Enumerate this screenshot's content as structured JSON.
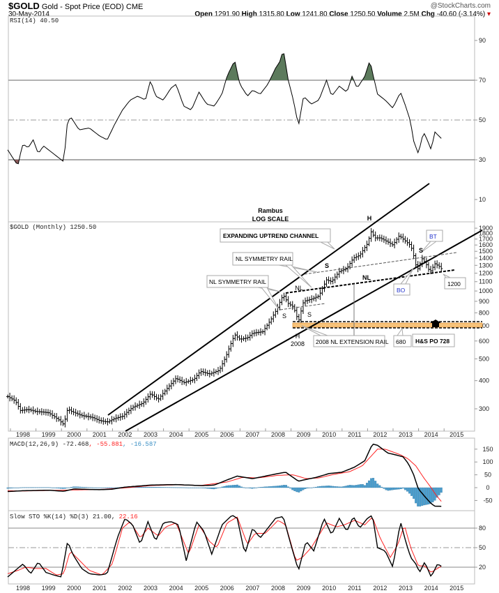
{
  "header": {
    "symbol": "$GOLD",
    "name": "Gold - Spot Price (EOD)",
    "exchange": "CME",
    "date": "30-May-2014",
    "watermark": "@StockCharts.com",
    "open_label": "Open",
    "open": "1291.90",
    "high_label": "High",
    "high": "1315.80",
    "low_label": "Low",
    "low": "1241.80",
    "close_label": "Close",
    "close": "1250.50",
    "volume_label": "Volume",
    "volume": "2.5M",
    "chg_label": "Chg",
    "chg": "-40.60 (-3.14%)",
    "down_color": "#cc0000"
  },
  "annotations": {
    "author": "Rambus",
    "scale": "LOG SCALE",
    "channel": "EXPANDING UPTREND CHANNEL",
    "nl_rail_upper": "NL SYMMETRY RAIL",
    "nl_rail_lower": "NL SYMMETRY RAIL",
    "extension_rail": "2008 NL EXTENSION RAIL",
    "level_680": "680",
    "hs_po": "H&S PO 728",
    "level_1200": "1200",
    "bo": "BO",
    "bt": "BT",
    "h_top": "H",
    "s_left_top": "S",
    "nl_top": "NL",
    "s_right_top": "S",
    "nl_2008": "NL",
    "s_left_2008": "S",
    "s_right_2008": "S",
    "h_2008": "H",
    "year_2008": "2008"
  },
  "chart_data": [
    {
      "type": "line",
      "title": "RSI(14) 40.50",
      "yticks": [
        10,
        30,
        50,
        70,
        90
      ],
      "ylim": [
        0,
        100
      ],
      "overbought": 70,
      "oversold": 30,
      "mid": 50,
      "fill_colors": {
        "overbought": "#5c7a5c",
        "oversold": "#8a5a5a"
      },
      "points": [
        [
          1997.4,
          35
        ],
        [
          1997.6,
          31
        ],
        [
          1997.8,
          27
        ],
        [
          1997.9,
          33
        ],
        [
          1998.0,
          38
        ],
        [
          1998.2,
          36
        ],
        [
          1998.4,
          40
        ],
        [
          1998.6,
          33
        ],
        [
          1998.8,
          37
        ],
        [
          1999.0,
          35
        ],
        [
          1999.3,
          32
        ],
        [
          1999.6,
          29
        ],
        [
          1999.75,
          50
        ],
        [
          1999.9,
          51
        ],
        [
          2000.2,
          45
        ],
        [
          2000.6,
          46
        ],
        [
          2001.0,
          42
        ],
        [
          2001.3,
          40
        ],
        [
          2001.6,
          48
        ],
        [
          2001.9,
          55
        ],
        [
          2002.2,
          60
        ],
        [
          2002.5,
          62
        ],
        [
          2002.8,
          60
        ],
        [
          2003.0,
          70
        ],
        [
          2003.2,
          62
        ],
        [
          2003.5,
          60
        ],
        [
          2003.8,
          66
        ],
        [
          2004.0,
          68
        ],
        [
          2004.3,
          57
        ],
        [
          2004.6,
          55
        ],
        [
          2004.9,
          64
        ],
        [
          2005.2,
          58
        ],
        [
          2005.5,
          57
        ],
        [
          2005.8,
          63
        ],
        [
          2006.0,
          72
        ],
        [
          2006.3,
          80
        ],
        [
          2006.5,
          68
        ],
        [
          2006.8,
          62
        ],
        [
          2007.0,
          65
        ],
        [
          2007.3,
          63
        ],
        [
          2007.6,
          68
        ],
        [
          2007.9,
          76
        ],
        [
          2008.1,
          80
        ],
        [
          2008.2,
          86
        ],
        [
          2008.4,
          70
        ],
        [
          2008.6,
          60
        ],
        [
          2008.8,
          47
        ],
        [
          2009.0,
          62
        ],
        [
          2009.3,
          58
        ],
        [
          2009.6,
          60
        ],
        [
          2009.9,
          70
        ],
        [
          2010.1,
          62
        ],
        [
          2010.4,
          67
        ],
        [
          2010.7,
          64
        ],
        [
          2010.9,
          72
        ],
        [
          2011.1,
          66
        ],
        [
          2011.4,
          72
        ],
        [
          2011.6,
          80
        ],
        [
          2011.7,
          74
        ],
        [
          2011.9,
          63
        ],
        [
          2012.2,
          60
        ],
        [
          2012.5,
          56
        ],
        [
          2012.8,
          64
        ],
        [
          2013.0,
          57
        ],
        [
          2013.2,
          49
        ],
        [
          2013.3,
          40
        ],
        [
          2013.5,
          33
        ],
        [
          2013.7,
          44
        ],
        [
          2013.85,
          40
        ],
        [
          2014.0,
          35
        ],
        [
          2014.15,
          44
        ],
        [
          2014.3,
          42
        ],
        [
          2014.42,
          40.5
        ]
      ]
    },
    {
      "type": "ohlc",
      "title": "$GOLD (Monthly) 1250.50",
      "scale": "log",
      "yticks": [
        300,
        400,
        500,
        600,
        700,
        800,
        900,
        1000,
        1100,
        1200,
        1300,
        1400,
        1500,
        1600,
        1700,
        1800,
        1900
      ],
      "xticks": [
        "1998",
        "1999",
        "2000",
        "2001",
        "2002",
        "2003",
        "2004",
        "2005",
        "2006",
        "2007",
        "2008",
        "2009",
        "2010",
        "2011",
        "2012",
        "2013",
        "2014",
        "2015"
      ],
      "points": [
        [
          1997.4,
          340
        ],
        [
          1997.7,
          325
        ],
        [
          1997.9,
          295
        ],
        [
          1998.2,
          298
        ],
        [
          1998.5,
          292
        ],
        [
          1998.8,
          290
        ],
        [
          1999.0,
          288
        ],
        [
          1999.4,
          268
        ],
        [
          1999.6,
          255
        ],
        [
          1999.75,
          300
        ],
        [
          1999.9,
          292
        ],
        [
          2000.3,
          280
        ],
        [
          2000.7,
          275
        ],
        [
          2001.0,
          266
        ],
        [
          2001.3,
          262
        ],
        [
          2001.6,
          272
        ],
        [
          2001.9,
          278
        ],
        [
          2002.3,
          305
        ],
        [
          2002.7,
          318
        ],
        [
          2003.0,
          350
        ],
        [
          2003.3,
          330
        ],
        [
          2003.7,
          375
        ],
        [
          2004.0,
          410
        ],
        [
          2004.3,
          392
        ],
        [
          2004.7,
          405
        ],
        [
          2004.95,
          440
        ],
        [
          2005.3,
          428
        ],
        [
          2005.7,
          445
        ],
        [
          2005.95,
          510
        ],
        [
          2006.3,
          640
        ],
        [
          2006.5,
          610
        ],
        [
          2006.8,
          620
        ],
        [
          2007.0,
          650
        ],
        [
          2007.4,
          660
        ],
        [
          2007.7,
          740
        ],
        [
          2007.95,
          830
        ],
        [
          2008.2,
          960
        ],
        [
          2008.4,
          880
        ],
        [
          2008.6,
          850
        ],
        [
          2008.8,
          730
        ],
        [
          2009.0,
          900
        ],
        [
          2009.3,
          920
        ],
        [
          2009.6,
          950
        ],
        [
          2009.9,
          1120
        ],
        [
          2010.1,
          1100
        ],
        [
          2010.4,
          1220
        ],
        [
          2010.7,
          1260
        ],
        [
          2010.95,
          1400
        ],
        [
          2011.2,
          1440
        ],
        [
          2011.5,
          1620
        ],
        [
          2011.65,
          1830
        ],
        [
          2011.8,
          1720
        ],
        [
          2012.0,
          1720
        ],
        [
          2012.3,
          1650
        ],
        [
          2012.5,
          1600
        ],
        [
          2012.75,
          1760
        ],
        [
          2012.95,
          1680
        ],
        [
          2013.2,
          1590
        ],
        [
          2013.3,
          1460
        ],
        [
          2013.45,
          1230
        ],
        [
          2013.65,
          1390
        ],
        [
          2013.8,
          1320
        ],
        [
          2013.95,
          1210
        ],
        [
          2014.15,
          1320
        ],
        [
          2014.3,
          1290
        ],
        [
          2014.42,
          1250.5
        ]
      ]
    },
    {
      "type": "line",
      "title": "MACD(12,26,9)",
      "legend": [
        {
          "name": "MACD",
          "value": "-72.468",
          "color": "#000000"
        },
        {
          "name": "Signal",
          "value": "-55.881",
          "color": "#ff2222"
        },
        {
          "name": "Histogram",
          "value": "-16.587",
          "color": "#3a8fc4"
        }
      ],
      "yticks": [
        -50,
        0,
        50,
        100,
        150
      ],
      "macd": [
        [
          1997.4,
          -15
        ],
        [
          1998.0,
          -12
        ],
        [
          1999.0,
          -10
        ],
        [
          1999.6,
          -14
        ],
        [
          2000.0,
          -5
        ],
        [
          2001.0,
          -8
        ],
        [
          2001.5,
          -6
        ],
        [
          2002.0,
          2
        ],
        [
          2003.0,
          10
        ],
        [
          2004.0,
          12
        ],
        [
          2005.0,
          8
        ],
        [
          2005.5,
          10
        ],
        [
          2006.0,
          30
        ],
        [
          2006.4,
          45
        ],
        [
          2007.0,
          35
        ],
        [
          2008.0,
          55
        ],
        [
          2008.3,
          60
        ],
        [
          2008.8,
          25
        ],
        [
          2009.0,
          30
        ],
        [
          2009.5,
          40
        ],
        [
          2010.0,
          55
        ],
        [
          2010.5,
          60
        ],
        [
          2011.0,
          80
        ],
        [
          2011.4,
          105
        ],
        [
          2011.7,
          170
        ],
        [
          2011.9,
          165
        ],
        [
          2012.3,
          135
        ],
        [
          2012.6,
          128
        ],
        [
          2012.9,
          120
        ],
        [
          2013.1,
          95
        ],
        [
          2013.3,
          55
        ],
        [
          2013.5,
          -5
        ],
        [
          2013.8,
          -40
        ],
        [
          2014.0,
          -62
        ],
        [
          2014.15,
          -72
        ],
        [
          2014.42,
          -72.5
        ]
      ],
      "signal": [
        [
          1997.4,
          -12
        ],
        [
          1998.0,
          -13
        ],
        [
          1999.0,
          -11
        ],
        [
          2000.0,
          -9
        ],
        [
          2001.0,
          -7
        ],
        [
          2002.0,
          -1
        ],
        [
          2003.0,
          8
        ],
        [
          2004.0,
          11
        ],
        [
          2005.0,
          9
        ],
        [
          2006.0,
          22
        ],
        [
          2006.6,
          40
        ],
        [
          2007.2,
          38
        ],
        [
          2008.0,
          48
        ],
        [
          2008.6,
          50
        ],
        [
          2009.1,
          35
        ],
        [
          2009.6,
          38
        ],
        [
          2010.2,
          52
        ],
        [
          2010.8,
          62
        ],
        [
          2011.3,
          85
        ],
        [
          2011.9,
          150
        ],
        [
          2012.2,
          150
        ],
        [
          2012.8,
          128
        ],
        [
          2013.1,
          112
        ],
        [
          2013.4,
          85
        ],
        [
          2013.7,
          40
        ],
        [
          2014.0,
          0
        ],
        [
          2014.2,
          -30
        ],
        [
          2014.42,
          -55.9
        ]
      ]
    },
    {
      "type": "line",
      "title": "Slow STO %K(14) %D(3) 21.00, 22.16",
      "legend": [
        {
          "name": "%K",
          "value": "21.00",
          "color": "#000000"
        },
        {
          "name": "%D",
          "value": "22.16",
          "color": "#ff2222"
        }
      ],
      "yticks": [
        20,
        50,
        80
      ],
      "k": [
        [
          1997.4,
          5
        ],
        [
          1997.7,
          15
        ],
        [
          1998.0,
          25
        ],
        [
          1998.3,
          10
        ],
        [
          1998.6,
          28
        ],
        [
          1998.9,
          12
        ],
        [
          1999.2,
          8
        ],
        [
          1999.5,
          5
        ],
        [
          1999.75,
          60
        ],
        [
          1999.95,
          40
        ],
        [
          2000.3,
          18
        ],
        [
          2000.6,
          10
        ],
        [
          2001.0,
          8
        ],
        [
          2001.3,
          10
        ],
        [
          2001.7,
          65
        ],
        [
          2002.0,
          95
        ],
        [
          2002.3,
          85
        ],
        [
          2002.6,
          55
        ],
        [
          2002.9,
          90
        ],
        [
          2003.2,
          60
        ],
        [
          2003.5,
          88
        ],
        [
          2003.8,
          90
        ],
        [
          2004.1,
          85
        ],
        [
          2004.4,
          30
        ],
        [
          2004.8,
          90
        ],
        [
          2005.1,
          75
        ],
        [
          2005.4,
          40
        ],
        [
          2005.8,
          85
        ],
        [
          2006.2,
          100
        ],
        [
          2006.4,
          95
        ],
        [
          2006.7,
          40
        ],
        [
          2007.0,
          80
        ],
        [
          2007.3,
          65
        ],
        [
          2007.6,
          80
        ],
        [
          2007.9,
          95
        ],
        [
          2008.2,
          98
        ],
        [
          2008.5,
          55
        ],
        [
          2008.8,
          15
        ],
        [
          2009.1,
          60
        ],
        [
          2009.4,
          45
        ],
        [
          2009.8,
          95
        ],
        [
          2010.1,
          70
        ],
        [
          2010.4,
          95
        ],
        [
          2010.7,
          75
        ],
        [
          2010.95,
          98
        ],
        [
          2011.2,
          80
        ],
        [
          2011.5,
          95
        ],
        [
          2011.7,
          100
        ],
        [
          2011.9,
          50
        ],
        [
          2012.2,
          45
        ],
        [
          2012.5,
          20
        ],
        [
          2012.8,
          90
        ],
        [
          2013.0,
          60
        ],
        [
          2013.2,
          35
        ],
        [
          2013.4,
          25
        ],
        [
          2013.55,
          12
        ],
        [
          2013.75,
          28
        ],
        [
          2014.0,
          5
        ],
        [
          2014.25,
          25
        ],
        [
          2014.42,
          21
        ]
      ],
      "d": [
        [
          1997.4,
          10
        ],
        [
          1997.8,
          15
        ],
        [
          1998.1,
          20
        ],
        [
          1998.5,
          18
        ],
        [
          1998.9,
          18
        ],
        [
          1999.3,
          8
        ],
        [
          1999.6,
          10
        ],
        [
          1999.85,
          45
        ],
        [
          2000.1,
          35
        ],
        [
          2000.6,
          15
        ],
        [
          2001.1,
          8
        ],
        [
          2001.5,
          25
        ],
        [
          2001.9,
          80
        ],
        [
          2002.2,
          90
        ],
        [
          2002.6,
          65
        ],
        [
          2002.9,
          80
        ],
        [
          2003.3,
          68
        ],
        [
          2003.6,
          82
        ],
        [
          2004.0,
          88
        ],
        [
          2004.5,
          40
        ],
        [
          2004.9,
          85
        ],
        [
          2005.3,
          60
        ],
        [
          2005.6,
          50
        ],
        [
          2006.0,
          88
        ],
        [
          2006.4,
          97
        ],
        [
          2006.8,
          55
        ],
        [
          2007.1,
          72
        ],
        [
          2007.5,
          72
        ],
        [
          2008.0,
          92
        ],
        [
          2008.3,
          85
        ],
        [
          2008.7,
          30
        ],
        [
          2008.95,
          35
        ],
        [
          2009.3,
          50
        ],
        [
          2009.9,
          88
        ],
        [
          2010.3,
          82
        ],
        [
          2010.6,
          85
        ],
        [
          2011.0,
          92
        ],
        [
          2011.4,
          85
        ],
        [
          2011.7,
          97
        ],
        [
          2012.0,
          65
        ],
        [
          2012.4,
          35
        ],
        [
          2012.7,
          55
        ],
        [
          2012.95,
          85
        ],
        [
          2013.2,
          50
        ],
        [
          2013.5,
          22
        ],
        [
          2013.75,
          22
        ],
        [
          2014.0,
          12
        ],
        [
          2014.25,
          18
        ],
        [
          2014.42,
          22.16
        ]
      ]
    }
  ],
  "panels": {
    "rsi_label": "RSI(14) 40.50",
    "price_label": "$GOLD (Monthly) 1250.50",
    "macd_label": "MACD(12,26,9) -72.468",
    "macd_signal": ", -55.881",
    "macd_hist": ", -16.587",
    "sto_label": "Slow STO %K(14) %D(3) 21.00,",
    "sto_d": " 22.16"
  }
}
